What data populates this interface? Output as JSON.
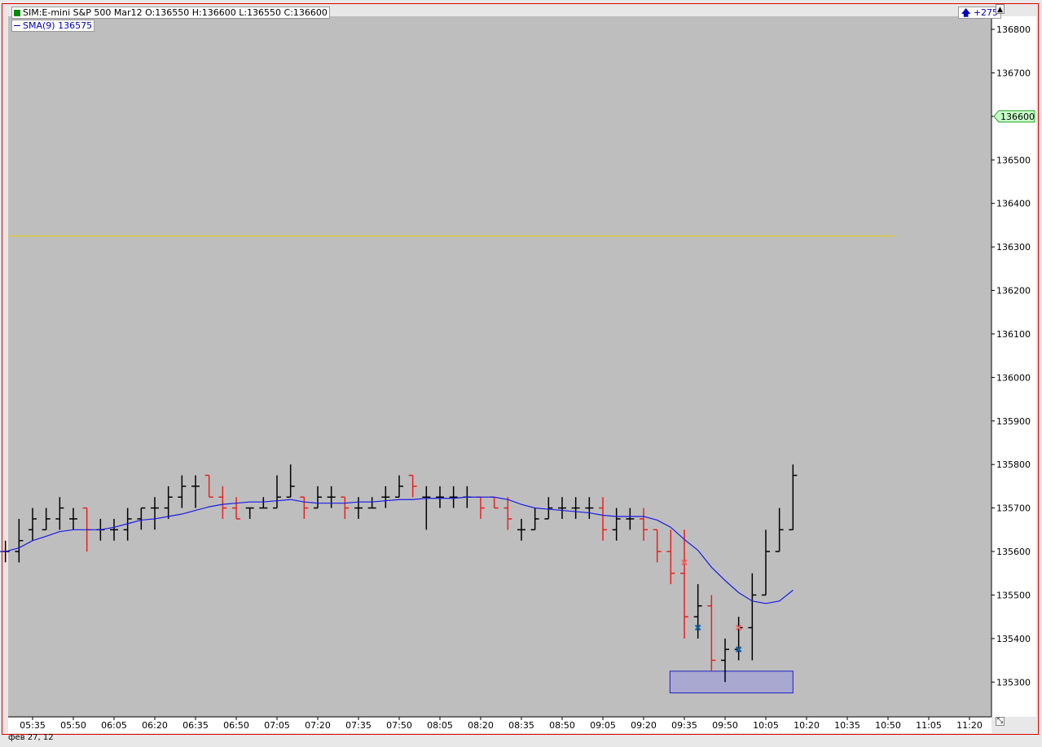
{
  "header": {
    "title": "SIM:E-mini S&P 500 Mar12 O:136550 H:136600 L:136550 C:136600",
    "indicator": "SMA(9)  136575",
    "change": "+275"
  },
  "date_label": "фев 27, 12",
  "colors": {
    "background": "#bebebe",
    "up_bar": "#000000",
    "down_bar": "#e82020",
    "sma": "#1a1ae6",
    "horizontal_line": "#e8d000",
    "marker_blue": "#1060a8",
    "marker_red": "#f06868",
    "zone_fill": "#a8a8d0",
    "zone_border": "#2020c0",
    "price_tag": "#c8ffc8"
  },
  "icons": {
    "scroll_up": "scroll-up-icon",
    "resize": "resize-grip-icon",
    "status": "connection-status-icon"
  },
  "chart_data": {
    "type": "ohlc",
    "title": "SIM:E-mini S&P 500 Mar12",
    "bar_interval_minutes": 5,
    "x_ticks": [
      "05:35",
      "05:50",
      "06:05",
      "06:20",
      "06:35",
      "06:50",
      "07:05",
      "07:20",
      "07:35",
      "07:50",
      "08:05",
      "08:20",
      "08:35",
      "08:50",
      "09:05",
      "09:20",
      "09:35",
      "09:50",
      "10:05",
      "10:20",
      "10:35",
      "10:50",
      "11:05",
      "11:20"
    ],
    "y_ticks": [
      135300,
      135400,
      135500,
      135600,
      135700,
      135800,
      135900,
      136000,
      136100,
      136200,
      136300,
      136400,
      136500,
      136600,
      136700,
      136800
    ],
    "ylim": [
      135220,
      136830
    ],
    "current_price_label": "136600",
    "horizontal_line": 136325,
    "series": [
      {
        "name": "E-mini S&P 500 Mar12",
        "bars": [
          [
            "05:20",
            135600,
            135625,
            135575,
            135600
          ],
          [
            "05:25",
            135600,
            135625,
            135575,
            135600
          ],
          [
            "05:30",
            135600,
            135675,
            135575,
            135625
          ],
          [
            "05:35",
            135650,
            135700,
            135625,
            135675
          ],
          [
            "05:40",
            135650,
            135700,
            135650,
            135675
          ],
          [
            "05:45",
            135675,
            135725,
            135650,
            135700
          ],
          [
            "05:50",
            135675,
            135700,
            135650,
            135675
          ],
          [
            "05:55",
            135700,
            135700,
            135600,
            135650
          ],
          [
            "06:00",
            135650,
            135675,
            135625,
            135650
          ],
          [
            "06:05",
            135650,
            135675,
            135625,
            135650
          ],
          [
            "06:10",
            135650,
            135700,
            135625,
            135675
          ],
          [
            "06:15",
            135675,
            135700,
            135650,
            135700
          ],
          [
            "06:20",
            135700,
            135725,
            135650,
            135700
          ],
          [
            "06:25",
            135700,
            135750,
            135675,
            135725
          ],
          [
            "06:30",
            135725,
            135775,
            135700,
            135750
          ],
          [
            "06:35",
            135750,
            135775,
            135700,
            135750
          ],
          [
            "06:40",
            135775,
            135775,
            135725,
            135725
          ],
          [
            "06:45",
            135725,
            135750,
            135675,
            135700
          ],
          [
            "06:50",
            135700,
            135725,
            135675,
            135675
          ],
          [
            "06:55",
            135700,
            135700,
            135675,
            135700
          ],
          [
            "07:00",
            135700,
            135725,
            135700,
            135700
          ],
          [
            "07:05",
            135700,
            135775,
            135700,
            135725
          ],
          [
            "07:10",
            135725,
            135800,
            135725,
            135750
          ],
          [
            "07:15",
            135725,
            135725,
            135675,
            135700
          ],
          [
            "07:20",
            135700,
            135750,
            135700,
            135725
          ],
          [
            "07:25",
            135725,
            135750,
            135700,
            135725
          ],
          [
            "07:30",
            135725,
            135725,
            135675,
            135700
          ],
          [
            "07:35",
            135700,
            135725,
            135675,
            135700
          ],
          [
            "07:40",
            135700,
            135725,
            135700,
            135700
          ],
          [
            "07:45",
            135725,
            135750,
            135700,
            135725
          ],
          [
            "07:50",
            135725,
            135775,
            135725,
            135750
          ],
          [
            "07:55",
            135775,
            135775,
            135725,
            135750
          ],
          [
            "08:00",
            135725,
            135750,
            135650,
            135725
          ],
          [
            "08:05",
            135725,
            135750,
            135700,
            135725
          ],
          [
            "08:10",
            135725,
            135750,
            135700,
            135725
          ],
          [
            "08:15",
            135725,
            135750,
            135700,
            135725
          ],
          [
            "08:20",
            135725,
            135725,
            135675,
            135700
          ],
          [
            "08:25",
            135725,
            135725,
            135700,
            135700
          ],
          [
            "08:30",
            135700,
            135725,
            135650,
            135675
          ],
          [
            "08:35",
            135650,
            135675,
            135625,
            135650
          ],
          [
            "08:40",
            135650,
            135700,
            135650,
            135675
          ],
          [
            "08:45",
            135675,
            135725,
            135675,
            135700
          ],
          [
            "08:50",
            135700,
            135725,
            135675,
            135700
          ],
          [
            "08:55",
            135700,
            135725,
            135675,
            135700
          ],
          [
            "09:00",
            135700,
            135725,
            135675,
            135700
          ],
          [
            "09:05",
            135700,
            135725,
            135625,
            135650
          ],
          [
            "09:10",
            135650,
            135700,
            135625,
            135675
          ],
          [
            "09:15",
            135675,
            135700,
            135650,
            135675
          ],
          [
            "09:20",
            135675,
            135700,
            135625,
            135650
          ],
          [
            "09:25",
            135650,
            135650,
            135575,
            135600
          ],
          [
            "09:30",
            135600,
            135650,
            135525,
            135550
          ],
          [
            "09:35",
            135550,
            135650,
            135400,
            135450
          ],
          [
            "09:40",
            135450,
            135525,
            135400,
            135475
          ],
          [
            "09:45",
            135475,
            135500,
            135325,
            135350
          ],
          [
            "09:50",
            135350,
            135400,
            135300,
            135375
          ],
          [
            "09:55",
            135375,
            135450,
            135350,
            135425
          ],
          [
            "10:00",
            135425,
            135550,
            135350,
            135500
          ],
          [
            "10:05",
            135500,
            135650,
            135500,
            135600
          ],
          [
            "10:10",
            135600,
            135700,
            135600,
            135650
          ],
          [
            "10:15",
            135650,
            135800,
            135650,
            135775
          ]
        ]
      },
      {
        "name": "SMA(9)",
        "values": []
      }
    ],
    "trade_markers": [
      {
        "time": "09:35",
        "price": 135575,
        "color": "red"
      },
      {
        "time": "09:40",
        "price": 135425,
        "color": "blue"
      },
      {
        "time": "09:55",
        "price": 135425,
        "color": "red"
      },
      {
        "time": "09:55",
        "price": 135375,
        "color": "blue"
      }
    ]
  }
}
